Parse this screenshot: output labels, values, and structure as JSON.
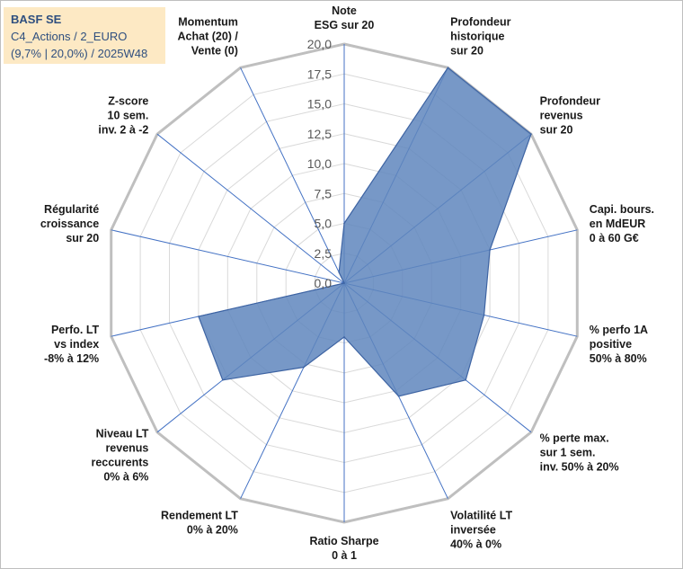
{
  "title_box": {
    "line1": "BASF SE",
    "line2": "C4_Actions / 2_EURO",
    "line3": "(9,7% | 20,0%) / 2025W48"
  },
  "colors": {
    "fill": "#5f86bd",
    "outline": "#3e64a3",
    "grid": "#d9d9d9",
    "outer_grid": "#bfbfbf",
    "spoke": "#4472c4",
    "title_bg": "#fde9c4",
    "text": "#1a1a1a"
  },
  "chart_data": {
    "type": "radar",
    "title": "BASF SE",
    "rmin": 0,
    "rmax": 20,
    "step": 2.5,
    "tick_labels": [
      "0,0",
      "2,5",
      "5,0",
      "7,5",
      "10,0",
      "12,5",
      "15,0",
      "17,5",
      "20,0"
    ],
    "axes": [
      {
        "label": [
          "Note",
          "ESG sur 20"
        ]
      },
      {
        "label": [
          "Profondeur",
          "historique",
          "sur 20"
        ]
      },
      {
        "label": [
          "Profondeur",
          "revenus",
          "sur 20"
        ]
      },
      {
        "label": [
          "Capi. bours.",
          "en MdEUR",
          "0 à 60 G€"
        ]
      },
      {
        "label": [
          "% perfo 1A",
          "positive",
          "50% à 80%"
        ]
      },
      {
        "label": [
          "% perte max.",
          "sur 1 sem.",
          "inv. 50% à 20%"
        ]
      },
      {
        "label": [
          "Volatilité LT",
          "inversée",
          "40% à 0%"
        ]
      },
      {
        "label": [
          "Ratio Sharpe",
          "0 à 1"
        ]
      },
      {
        "label": [
          "Rendement LT",
          "0% à 20%"
        ]
      },
      {
        "label": [
          "Niveau LT",
          "revenus",
          "reccurents",
          "0% à 6%"
        ]
      },
      {
        "label": [
          "Perfo. LT",
          "vs index",
          "-8% à 12%"
        ]
      },
      {
        "label": [
          "Régularité",
          "croissance",
          "sur 20"
        ]
      },
      {
        "label": [
          "Z-score",
          "10 sem.",
          "inv. 2 à -2"
        ]
      },
      {
        "label": [
          "Momentum",
          "Achat (20) /",
          "Vente (0)"
        ]
      }
    ],
    "series": [
      {
        "name": "BASF SE",
        "values": [
          5.0,
          20.0,
          20.0,
          12.5,
          12.0,
          13.0,
          10.5,
          4.5,
          7.8,
          13.0,
          12.5,
          0.0,
          0.0,
          1.0
        ]
      }
    ]
  }
}
